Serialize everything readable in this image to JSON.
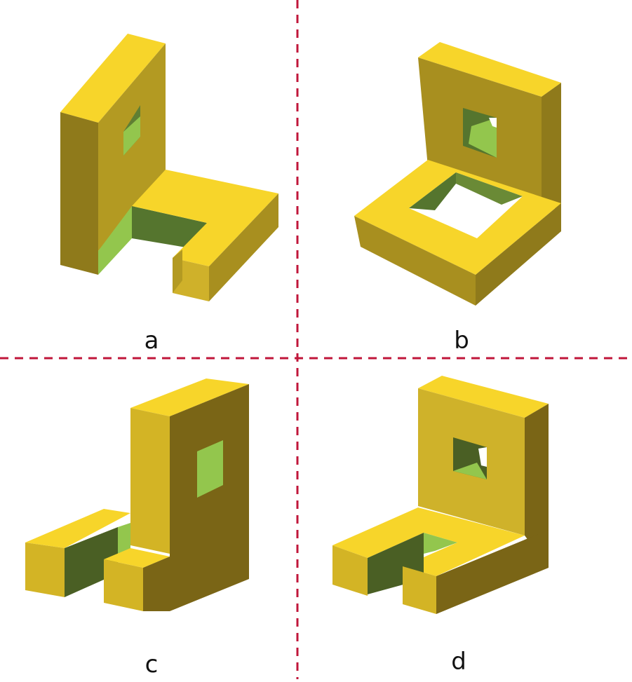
{
  "labels": {
    "a": "a",
    "b": "b",
    "c": "c",
    "d": "d"
  },
  "colors": {
    "divider": "#c0163a",
    "yellow_top": "#f7d52a",
    "yellow_front": "#d3b425",
    "yellow_side": "#a88f1f",
    "yellow_dark": "#7a6516",
    "green_light": "#93c64d",
    "green_dark": "#55752e",
    "hole_white": "#ffffff"
  },
  "icons": [
    "shape-a-icon",
    "shape-b-icon",
    "shape-c-icon",
    "shape-d-icon"
  ]
}
